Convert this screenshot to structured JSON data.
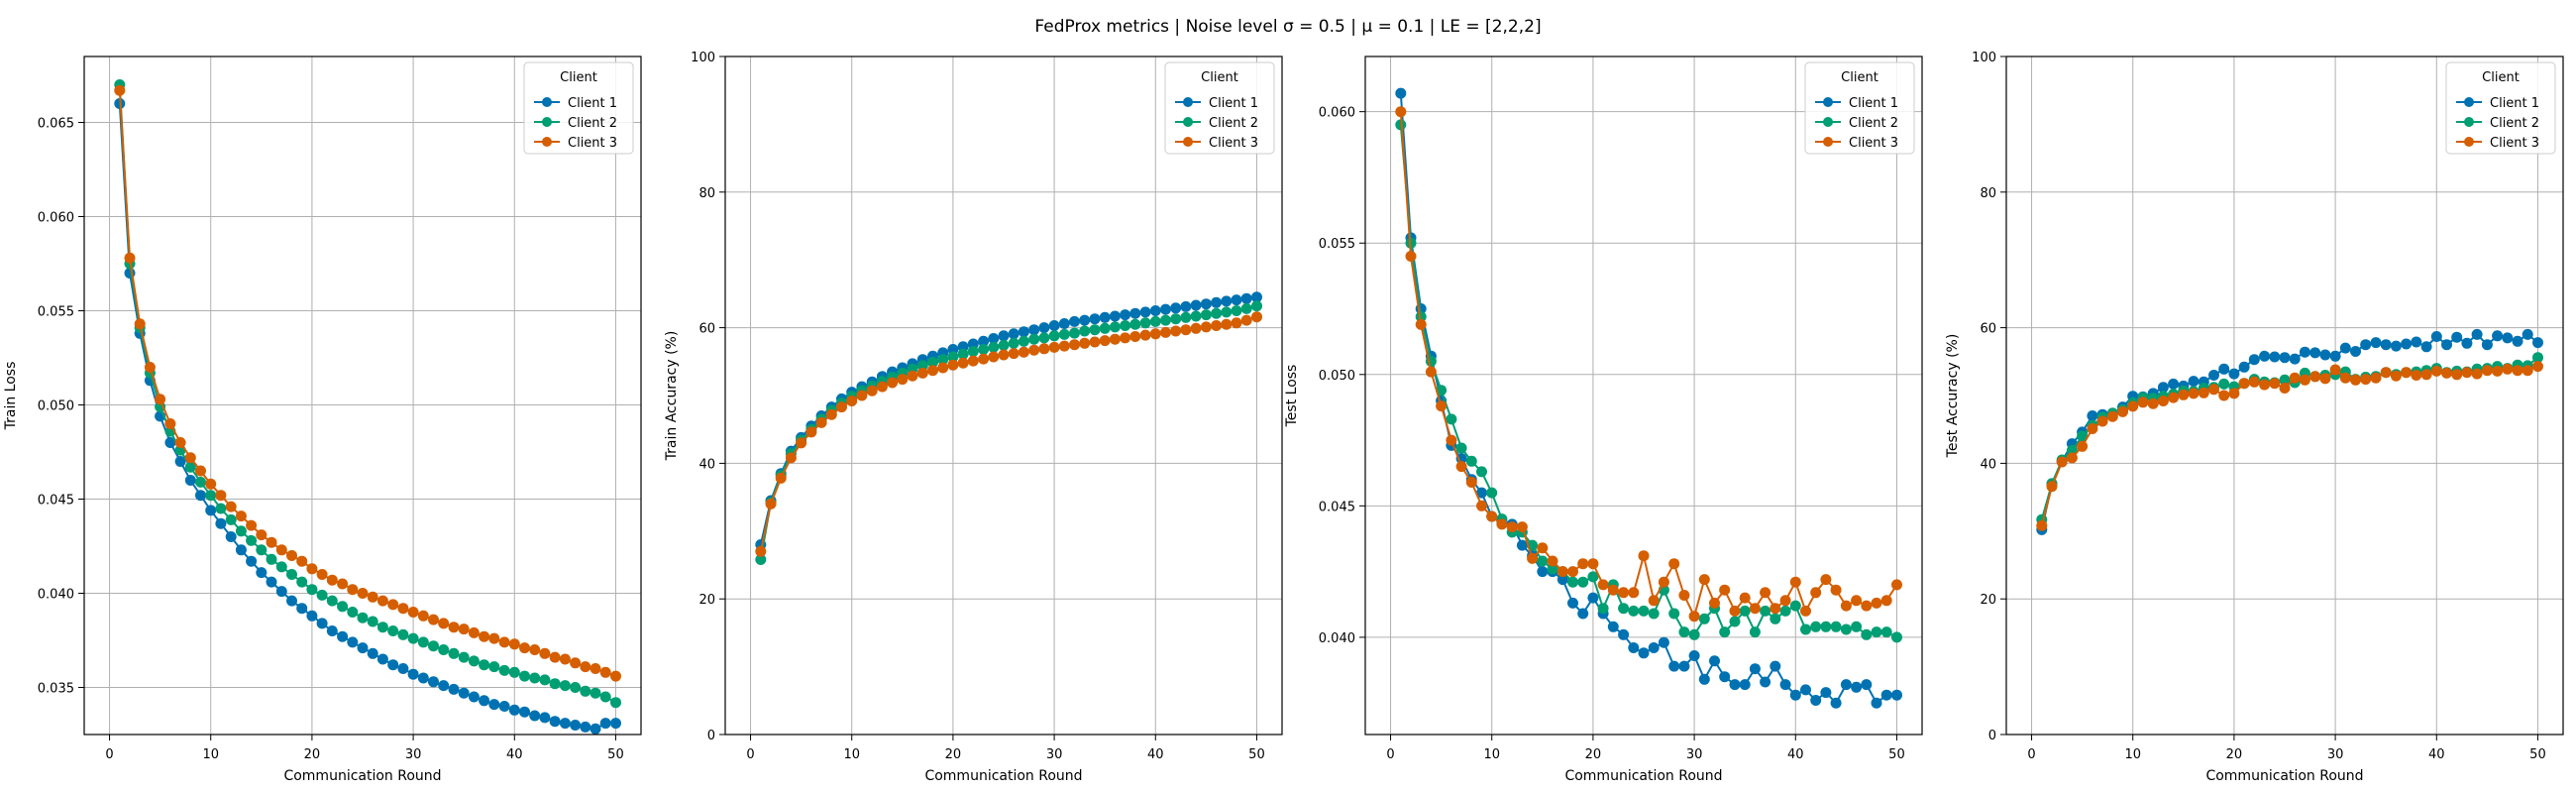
{
  "figure": {
    "suptitle": "FedProx metrics | Noise level σ = 0.5 | μ = 0.1 | LE = [2,2,2]"
  },
  "colors": {
    "client_1": "#0072b2",
    "client_2": "#009e73",
    "client_3": "#d55e00"
  },
  "chart_data": [
    {
      "type": "line",
      "title": "",
      "xlabel": "Communication Round",
      "ylabel": "Train Loss",
      "xlim": [
        -2.5,
        52.5
      ],
      "ylim": [
        0.0325,
        0.0685
      ],
      "xticks": [
        0,
        10,
        20,
        30,
        40,
        50
      ],
      "yticks": [
        0.035,
        0.04,
        0.045,
        0.05,
        0.055,
        0.06,
        0.065
      ],
      "ytick_labels": [
        "0.035",
        "0.040",
        "0.045",
        "0.050",
        "0.055",
        "0.060",
        "0.065"
      ],
      "grid": true,
      "legend": {
        "title": "Client",
        "location": "top-right"
      },
      "x_start": 1,
      "series": [
        {
          "name": "Client 1",
          "color": "#0072b2",
          "values": [
            0.066,
            0.057,
            0.0538,
            0.0513,
            0.0494,
            0.048,
            0.047,
            0.046,
            0.0452,
            0.0444,
            0.0437,
            0.043,
            0.0423,
            0.0417,
            0.0411,
            0.0406,
            0.0401,
            0.0396,
            0.0392,
            0.0388,
            0.0384,
            0.038,
            0.0377,
            0.0374,
            0.0371,
            0.0368,
            0.0365,
            0.0362,
            0.036,
            0.0357,
            0.0355,
            0.0353,
            0.0351,
            0.0349,
            0.0347,
            0.0345,
            0.0343,
            0.0341,
            0.034,
            0.0338,
            0.0337,
            0.0335,
            0.0334,
            0.0332,
            0.0331,
            0.033,
            0.0329,
            0.0328,
            0.0331,
            0.0331
          ]
        },
        {
          "name": "Client 2",
          "color": "#009e73",
          "values": [
            0.067,
            0.0575,
            0.0541,
            0.0517,
            0.0499,
            0.0486,
            0.0476,
            0.0467,
            0.0459,
            0.0452,
            0.0445,
            0.0439,
            0.0433,
            0.0428,
            0.0423,
            0.0418,
            0.0414,
            0.041,
            0.0406,
            0.0402,
            0.0399,
            0.0396,
            0.0393,
            0.039,
            0.0387,
            0.0385,
            0.0382,
            0.038,
            0.0378,
            0.0376,
            0.0374,
            0.0372,
            0.037,
            0.0368,
            0.0366,
            0.0364,
            0.0362,
            0.0361,
            0.0359,
            0.0358,
            0.0356,
            0.0355,
            0.0354,
            0.0352,
            0.0351,
            0.035,
            0.0348,
            0.0347,
            0.0345,
            0.0342
          ]
        },
        {
          "name": "Client 3",
          "color": "#d55e00",
          "values": [
            0.0667,
            0.0578,
            0.0543,
            0.052,
            0.0503,
            0.049,
            0.048,
            0.0472,
            0.0465,
            0.0458,
            0.0452,
            0.0446,
            0.0441,
            0.0436,
            0.0431,
            0.0427,
            0.0423,
            0.042,
            0.0417,
            0.0413,
            0.041,
            0.0407,
            0.0405,
            0.0402,
            0.04,
            0.0398,
            0.0396,
            0.0394,
            0.0392,
            0.039,
            0.0388,
            0.0386,
            0.0384,
            0.0382,
            0.0381,
            0.0379,
            0.0377,
            0.0376,
            0.0374,
            0.0373,
            0.0371,
            0.037,
            0.0368,
            0.0366,
            0.0365,
            0.0363,
            0.0361,
            0.036,
            0.0358,
            0.0356
          ]
        }
      ]
    },
    {
      "type": "line",
      "title": "",
      "xlabel": "Communication Round",
      "ylabel": "Train Accuracy (%)",
      "xlim": [
        -2.5,
        52.5
      ],
      "ylim": [
        0,
        100
      ],
      "xticks": [
        0,
        10,
        20,
        30,
        40,
        50
      ],
      "yticks": [
        0,
        20,
        40,
        60,
        80,
        100
      ],
      "ytick_labels": [
        "0",
        "20",
        "40",
        "60",
        "80",
        "100"
      ],
      "grid": true,
      "legend": {
        "title": "Client",
        "location": "top-right"
      },
      "x_start": 1,
      "series": [
        {
          "name": "Client 1",
          "color": "#0072b2",
          "values": [
            28.0,
            34.5,
            38.5,
            41.8,
            43.8,
            45.5,
            47.0,
            48.3,
            49.5,
            50.5,
            51.3,
            52.0,
            52.8,
            53.5,
            54.1,
            54.7,
            55.3,
            55.8,
            56.3,
            56.8,
            57.2,
            57.6,
            58.0,
            58.4,
            58.8,
            59.1,
            59.4,
            59.7,
            60.0,
            60.3,
            60.6,
            60.9,
            61.1,
            61.3,
            61.5,
            61.7,
            61.9,
            62.1,
            62.3,
            62.5,
            62.7,
            62.9,
            63.1,
            63.3,
            63.5,
            63.7,
            63.9,
            64.1,
            64.3,
            64.5
          ]
        },
        {
          "name": "Client 2",
          "color": "#009e73",
          "values": [
            25.8,
            34.2,
            38.2,
            41.4,
            43.4,
            45.0,
            46.5,
            47.8,
            48.9,
            49.9,
            50.7,
            51.4,
            52.1,
            52.7,
            53.3,
            53.9,
            54.4,
            54.9,
            55.3,
            55.7,
            56.1,
            56.5,
            56.8,
            57.1,
            57.4,
            57.7,
            58.0,
            58.3,
            58.5,
            58.8,
            59.0,
            59.2,
            59.5,
            59.7,
            59.9,
            60.1,
            60.3,
            60.5,
            60.7,
            60.9,
            61.1,
            61.3,
            61.5,
            61.7,
            61.9,
            62.1,
            62.3,
            62.5,
            62.8,
            63.2
          ]
        },
        {
          "name": "Client 3",
          "color": "#d55e00",
          "values": [
            27.0,
            34.0,
            37.8,
            40.8,
            43.0,
            44.6,
            46.0,
            47.2,
            48.3,
            49.2,
            50.0,
            50.7,
            51.3,
            51.9,
            52.4,
            52.9,
            53.3,
            53.7,
            54.1,
            54.5,
            54.8,
            55.1,
            55.4,
            55.7,
            56.0,
            56.2,
            56.4,
            56.7,
            56.9,
            57.1,
            57.3,
            57.5,
            57.7,
            57.9,
            58.1,
            58.3,
            58.5,
            58.7,
            58.9,
            59.1,
            59.3,
            59.5,
            59.7,
            59.9,
            60.1,
            60.3,
            60.5,
            60.7,
            61.1,
            61.6
          ]
        }
      ]
    },
    {
      "type": "line",
      "title": "",
      "xlabel": "Communication Round",
      "ylabel": "Test Loss",
      "xlim": [
        -2.5,
        52.5
      ],
      "ylim": [
        0.0363,
        0.0621
      ],
      "xticks": [
        0,
        10,
        20,
        30,
        40,
        50
      ],
      "yticks": [
        0.04,
        0.045,
        0.05,
        0.055,
        0.06
      ],
      "ytick_labels": [
        "0.040",
        "0.045",
        "0.050",
        "0.055",
        "0.060"
      ],
      "grid": true,
      "legend": {
        "title": "Client",
        "location": "top-right"
      },
      "x_start": 1,
      "series": [
        {
          "name": "Client 1",
          "color": "#0072b2",
          "values": [
            0.0607,
            0.0552,
            0.0525,
            0.0507,
            0.049,
            0.0473,
            0.0468,
            0.046,
            0.0455,
            0.0446,
            0.0444,
            0.0443,
            0.0435,
            0.0431,
            0.0425,
            0.0425,
            0.0422,
            0.0413,
            0.0409,
            0.0415,
            0.0409,
            0.0404,
            0.0401,
            0.0396,
            0.0394,
            0.0396,
            0.0398,
            0.0389,
            0.0389,
            0.0393,
            0.0384,
            0.0391,
            0.0385,
            0.0382,
            0.0382,
            0.0388,
            0.0383,
            0.0389,
            0.0382,
            0.0378,
            0.038,
            0.0376,
            0.0379,
            0.0375,
            0.0382,
            0.0381,
            0.0382,
            0.0375,
            0.0378,
            0.0378
          ]
        },
        {
          "name": "Client 2",
          "color": "#009e73",
          "values": [
            0.0595,
            0.055,
            0.0522,
            0.0505,
            0.0494,
            0.0483,
            0.0472,
            0.0467,
            0.0463,
            0.0455,
            0.0445,
            0.044,
            0.044,
            0.0435,
            0.0429,
            0.0426,
            0.0425,
            0.0421,
            0.0421,
            0.0423,
            0.0411,
            0.042,
            0.0411,
            0.041,
            0.041,
            0.0409,
            0.0418,
            0.0409,
            0.0402,
            0.0401,
            0.0407,
            0.0411,
            0.0402,
            0.0406,
            0.041,
            0.0402,
            0.041,
            0.0407,
            0.041,
            0.0412,
            0.0403,
            0.0404,
            0.0404,
            0.0404,
            0.0403,
            0.0404,
            0.0401,
            0.0402,
            0.0402,
            0.04
          ]
        },
        {
          "name": "Client 3",
          "color": "#d55e00",
          "values": [
            0.06,
            0.0545,
            0.0519,
            0.0501,
            0.0488,
            0.0475,
            0.0465,
            0.0459,
            0.045,
            0.0446,
            0.0443,
            0.0442,
            0.0442,
            0.043,
            0.0434,
            0.0429,
            0.0425,
            0.0425,
            0.0428,
            0.0428,
            0.042,
            0.0418,
            0.0417,
            0.0417,
            0.0431,
            0.0414,
            0.0421,
            0.0428,
            0.0416,
            0.0408,
            0.0422,
            0.0413,
            0.0418,
            0.041,
            0.0415,
            0.0411,
            0.0417,
            0.0411,
            0.0414,
            0.0421,
            0.041,
            0.0417,
            0.0422,
            0.0418,
            0.0412,
            0.0414,
            0.0412,
            0.0413,
            0.0414,
            0.042
          ]
        }
      ]
    },
    {
      "type": "line",
      "title": "",
      "xlabel": "Communication Round",
      "ylabel": "Test Accuracy (%)",
      "xlim": [
        -2.5,
        52.5
      ],
      "ylim": [
        0,
        100
      ],
      "xticks": [
        0,
        10,
        20,
        30,
        40,
        50
      ],
      "yticks": [
        0,
        20,
        40,
        60,
        80,
        100
      ],
      "ytick_labels": [
        "0",
        "20",
        "40",
        "60",
        "80",
        "100"
      ],
      "grid": true,
      "legend": {
        "title": "Client",
        "location": "top-right"
      },
      "x_start": 1,
      "series": [
        {
          "name": "Client 1",
          "color": "#0072b2",
          "values": [
            30.2,
            37.0,
            40.3,
            42.9,
            44.6,
            47.0,
            47.2,
            47.3,
            48.3,
            49.9,
            49.8,
            50.3,
            51.2,
            51.7,
            51.4,
            52.1,
            52.0,
            53.0,
            53.9,
            53.2,
            54.2,
            55.3,
            55.8,
            55.7,
            55.6,
            55.4,
            56.4,
            56.3,
            56.0,
            55.8,
            57.0,
            56.5,
            57.5,
            57.8,
            57.5,
            57.3,
            57.6,
            57.9,
            57.2,
            58.7,
            57.5,
            58.6,
            57.7,
            59.0,
            57.5,
            58.8,
            58.5,
            58.0,
            59.0,
            57.8
          ]
        },
        {
          "name": "Client 2",
          "color": "#009e73",
          "values": [
            31.7,
            37.0,
            40.5,
            41.9,
            44.0,
            45.6,
            46.8,
            47.4,
            47.9,
            48.9,
            49.7,
            49.6,
            49.9,
            50.2,
            50.7,
            50.6,
            51.1,
            51.2,
            51.7,
            51.3,
            51.8,
            52.4,
            52.0,
            51.9,
            52.3,
            51.9,
            53.3,
            52.8,
            53.0,
            53.1,
            53.5,
            52.4,
            52.7,
            52.8,
            53.4,
            53.1,
            53.4,
            53.5,
            53.7,
            54.0,
            53.4,
            53.6,
            53.5,
            53.9,
            54.0,
            54.3,
            54.0,
            54.5,
            54.4,
            55.6
          ]
        },
        {
          "name": "Client 3",
          "color": "#d55e00",
          "values": [
            30.8,
            36.6,
            40.2,
            40.8,
            42.5,
            45.1,
            46.2,
            46.9,
            47.6,
            48.4,
            49.0,
            48.8,
            49.2,
            49.7,
            50.1,
            50.3,
            50.4,
            50.9,
            50.0,
            50.3,
            51.8,
            52.0,
            51.6,
            51.8,
            51.1,
            52.6,
            52.3,
            52.8,
            52.5,
            53.8,
            52.6,
            52.3,
            52.4,
            52.6,
            53.4,
            52.9,
            53.4,
            53.0,
            53.1,
            53.6,
            53.3,
            53.1,
            53.4,
            53.2,
            53.7,
            53.6,
            53.9,
            53.7,
            53.7,
            54.3
          ]
        }
      ]
    }
  ]
}
